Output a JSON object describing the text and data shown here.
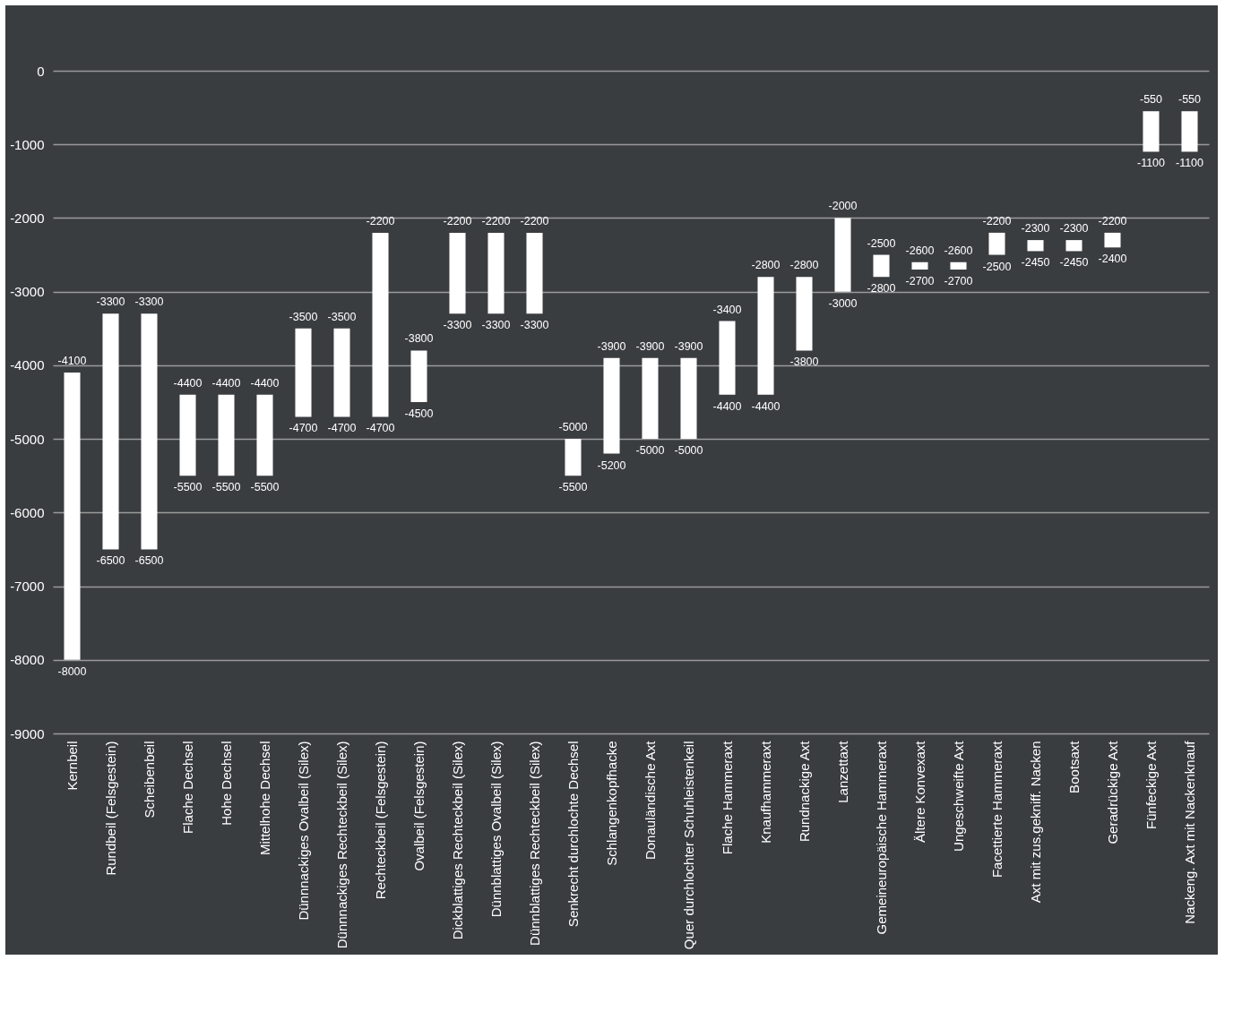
{
  "chart_data": {
    "type": "bar",
    "categories": [
      "Kernbeil",
      "Rundbeil (Felsgestein)",
      "Scheibenbeil",
      "Flache Dechsel",
      "Hohe Dechsel",
      "Mittelhohe Dechsel",
      "Dünnnackiges Ovalbeil (Silex)",
      "Dünnnackiges Rechteckbeil (Silex)",
      "Rechteckbeil (Felsgestein)",
      "Ovalbeil (Felsgestein)",
      "Dickblattiges Rechteckbeil (Silex)",
      "Dünnblattiges Ovalbeil (Silex)",
      "Dünnblattiges Rechteckbeil (Silex)",
      "Senkrecht durchlochte Dechsel",
      "Schlangenkopfhacke",
      "Donauländische Axt",
      "Quer durchlochter Schuhleistenkeil",
      "Flache Hammeraxt",
      "Knaufhammeraxt",
      "Rundnackige Axt",
      "Lanzettaxt",
      "Gemeineuropäische Hammeraxt",
      "Ältere Konvexaxt",
      "Ungeschweifte Axt",
      "Facettierte Hammeraxt",
      "Axt mit zus.gekniff. Nacken",
      "Bootsaxt",
      "Geradrückige Axt",
      "Fünfeckige Axt",
      "Nackeng. Axt mit Nackenknauf"
    ],
    "base": [
      -8000,
      -6500,
      -6500,
      -5500,
      -5500,
      -5500,
      -4700,
      -4700,
      -4700,
      -4500,
      -3300,
      -3300,
      -3300,
      -5500,
      -5200,
      -5000,
      -5000,
      -4400,
      -4400,
      -3800,
      -3000,
      -2800,
      -2700,
      -2700,
      -2500,
      -2450,
      -2450,
      -2400,
      -1100,
      -1100
    ],
    "values": [
      3900,
      3200,
      3200,
      1100,
      1100,
      1100,
      1200,
      1200,
      2500,
      700,
      1100,
      1100,
      1100,
      500,
      1300,
      1100,
      1100,
      1000,
      1600,
      1000,
      1000,
      300,
      100,
      100,
      300,
      150,
      150,
      200,
      550,
      550
    ],
    "color": "#ffffff",
    "ylim": [
      -9000,
      0
    ],
    "yticks": [
      -9000,
      -8000,
      -7000,
      -6000,
      -5000,
      -4000,
      -3000,
      -2000,
      -1000,
      0
    ],
    "grid": "y",
    "annotations": [
      {
        "text": "-4100",
        "x": "Kernbeil",
        "y": -4100
      },
      {
        "text": "-8000",
        "x": "Kernbeil",
        "y": -8000
      },
      {
        "text": "-3300",
        "x": "Rundbeil (Felsgestein)",
        "y": -3300
      },
      {
        "text": "-6500",
        "x": "Rundbeil (Felsgestein)",
        "y": -6500
      },
      {
        "text": "-3300",
        "x": "Scheibenbeil",
        "y": -3300
      },
      {
        "text": "-6500",
        "x": "Scheibenbeil",
        "y": -6500
      },
      {
        "text": "-4400",
        "x": "Flache Dechsel",
        "y": -4400
      },
      {
        "text": "-5500",
        "x": "Flache Dechsel",
        "y": -5500
      },
      {
        "text": "-4400",
        "x": "Hohe Dechsel",
        "y": -4400
      },
      {
        "text": "-5500",
        "x": "Hohe Dechsel",
        "y": -5500
      },
      {
        "text": "-4400",
        "x": "Mittelhohe Dechsel",
        "y": -4400
      },
      {
        "text": "-5500",
        "x": "Mittelhohe Dechsel",
        "y": -5500
      },
      {
        "text": "-3500",
        "x": "Dünnnackiges Ovalbeil (Silex)",
        "y": -3500
      },
      {
        "text": "-4700",
        "x": "Dünnnackiges Ovalbeil (Silex)",
        "y": -4700
      },
      {
        "text": "-3500",
        "x": "Dünnnackiges Rechteckbeil (Silex)",
        "y": -3500
      },
      {
        "text": "-4700",
        "x": "Dünnnackiges Rechteckbeil (Silex)",
        "y": -4700
      },
      {
        "text": "-2200",
        "x": "Rechteckbeil (Felsgestein)",
        "y": -2200
      },
      {
        "text": "-4700",
        "x": "Rechteckbeil (Felsgestein)",
        "y": -4700
      },
      {
        "text": "-3800",
        "x": "Ovalbeil (Felsgestein)",
        "y": -3800
      },
      {
        "text": "-4500",
        "x": "Ovalbeil (Felsgestein)",
        "y": -4500
      },
      {
        "text": "-2200",
        "x": "Dickblattiges Rechteckbeil (Silex)",
        "y": -2200
      },
      {
        "text": "-3300",
        "x": "Dickblattiges Rechteckbeil (Silex)",
        "y": -3300
      },
      {
        "text": "-2200",
        "x": "Dünnblattiges Ovalbeil (Silex)",
        "y": -2200
      },
      {
        "text": "-3300",
        "x": "Dünnblattiges Ovalbeil (Silex)",
        "y": -3300
      },
      {
        "text": "-2200",
        "x": "Dünnblattiges Rechteckbeil (Silex)",
        "y": -2200
      },
      {
        "text": "-3300",
        "x": "Dünnblattiges Rechteckbeil (Silex)",
        "y": -3300
      },
      {
        "text": "-5000",
        "x": "Senkrecht durchlochte Dechsel",
        "y": -5000
      },
      {
        "text": "-5500",
        "x": "Senkrecht durchlochte Dechsel",
        "y": -5500
      },
      {
        "text": "-3900",
        "x": "Schlangenkopfhacke",
        "y": -3900
      },
      {
        "text": "-5200",
        "x": "Schlangenkopfhacke",
        "y": -5200
      },
      {
        "text": "-3900",
        "x": "Donauländische Axt",
        "y": -3900
      },
      {
        "text": "-5000",
        "x": "Donauländische Axt",
        "y": -5000
      },
      {
        "text": "-3900",
        "x": "Quer durchlochter Schuhleistenkeil",
        "y": -3900
      },
      {
        "text": "-5000",
        "x": "Quer durchlochter Schuhleistenkeil",
        "y": -5000
      },
      {
        "text": "-3400",
        "x": "Flache Hammeraxt",
        "y": -3400
      },
      {
        "text": "-4400",
        "x": "Flache Hammeraxt",
        "y": -4400
      },
      {
        "text": "-2800",
        "x": "Knaufhammeraxt",
        "y": -2800
      },
      {
        "text": "-4400",
        "x": "Knaufhammeraxt",
        "y": -4400
      },
      {
        "text": "-2800",
        "x": "Rundnackige Axt",
        "y": -2800
      },
      {
        "text": "-3800",
        "x": "Rundnackige Axt",
        "y": -3800
      },
      {
        "text": "-2000",
        "x": "Lanzettaxt",
        "y": -2000
      },
      {
        "text": "-3000",
        "x": "Lanzettaxt",
        "y": -3000
      },
      {
        "text": "-2500",
        "x": "Gemeineuropäische Hammeraxt",
        "y": -2500
      },
      {
        "text": "-2800",
        "x": "Gemeineuropäische Hammeraxt",
        "y": -2800
      },
      {
        "text": "-2600",
        "x": "Ältere Konvexaxt",
        "y": -2600
      },
      {
        "text": "-2700",
        "x": "Ältere Konvexaxt",
        "y": -2700
      },
      {
        "text": "-2600",
        "x": "Ungeschweifte Axt",
        "y": -2600
      },
      {
        "text": "-2700",
        "x": "Ungeschweifte Axt",
        "y": -2700
      },
      {
        "text": "-2200",
        "x": "Facettierte Hammeraxt",
        "y": -2200
      },
      {
        "text": "-2500",
        "x": "Facettierte Hammeraxt",
        "y": -2500
      },
      {
        "text": "-2300",
        "x": "Axt mit zus.gekniff. Nacken",
        "y": -2300
      },
      {
        "text": "-2450",
        "x": "Axt mit zus.gekniff. Nacken",
        "y": -2450
      },
      {
        "text": "-2300",
        "x": "Bootsaxt",
        "y": -2300
      },
      {
        "text": "-2450",
        "x": "Bootsaxt",
        "y": -2450
      },
      {
        "text": "-2200",
        "x": "Geradrückige Axt",
        "y": -2200
      },
      {
        "text": "-2400",
        "x": "Geradrückige Axt",
        "y": -2400
      },
      {
        "text": "-550",
        "x": "Fünfeckige Axt",
        "y": -550
      },
      {
        "text": "-1100",
        "x": "Fünfeckige Axt",
        "y": -1100
      },
      {
        "text": "-550",
        "x": "Nackeng. Axt mit Nackenknauf",
        "y": -550
      },
      {
        "text": "-1100",
        "x": "Nackeng. Axt mit Nackenknauf",
        "y": -1100
      }
    ]
  }
}
